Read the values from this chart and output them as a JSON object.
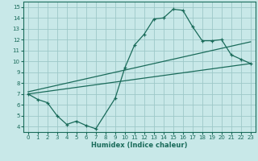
{
  "xlabel": "Humidex (Indice chaleur)",
  "bg_color": "#c8e8e8",
  "grid_color": "#9dc8c8",
  "line_color": "#1a6b5a",
  "xlim": [
    -0.5,
    23.5
  ],
  "ylim": [
    3.5,
    15.5
  ],
  "xticks": [
    0,
    1,
    2,
    3,
    4,
    5,
    6,
    7,
    8,
    9,
    10,
    11,
    12,
    13,
    14,
    15,
    16,
    17,
    18,
    19,
    20,
    21,
    22,
    23
  ],
  "yticks": [
    4,
    5,
    6,
    7,
    8,
    9,
    10,
    11,
    12,
    13,
    14,
    15
  ],
  "line1_x": [
    0,
    1,
    2,
    3,
    4,
    5,
    6,
    7,
    9,
    10,
    11,
    12,
    13,
    14,
    15,
    16,
    17,
    18,
    19,
    20,
    21,
    22,
    23
  ],
  "line1_y": [
    7.0,
    6.5,
    6.2,
    5.0,
    4.2,
    4.5,
    4.1,
    3.8,
    6.6,
    9.4,
    11.5,
    12.5,
    13.9,
    14.0,
    14.8,
    14.7,
    13.2,
    11.9,
    11.9,
    12.0,
    10.6,
    10.2,
    9.8
  ],
  "line2_x": [
    0,
    23
  ],
  "line2_y": [
    7.0,
    9.8
  ],
  "line3_x": [
    0,
    23
  ],
  "line3_y": [
    7.2,
    11.8
  ]
}
